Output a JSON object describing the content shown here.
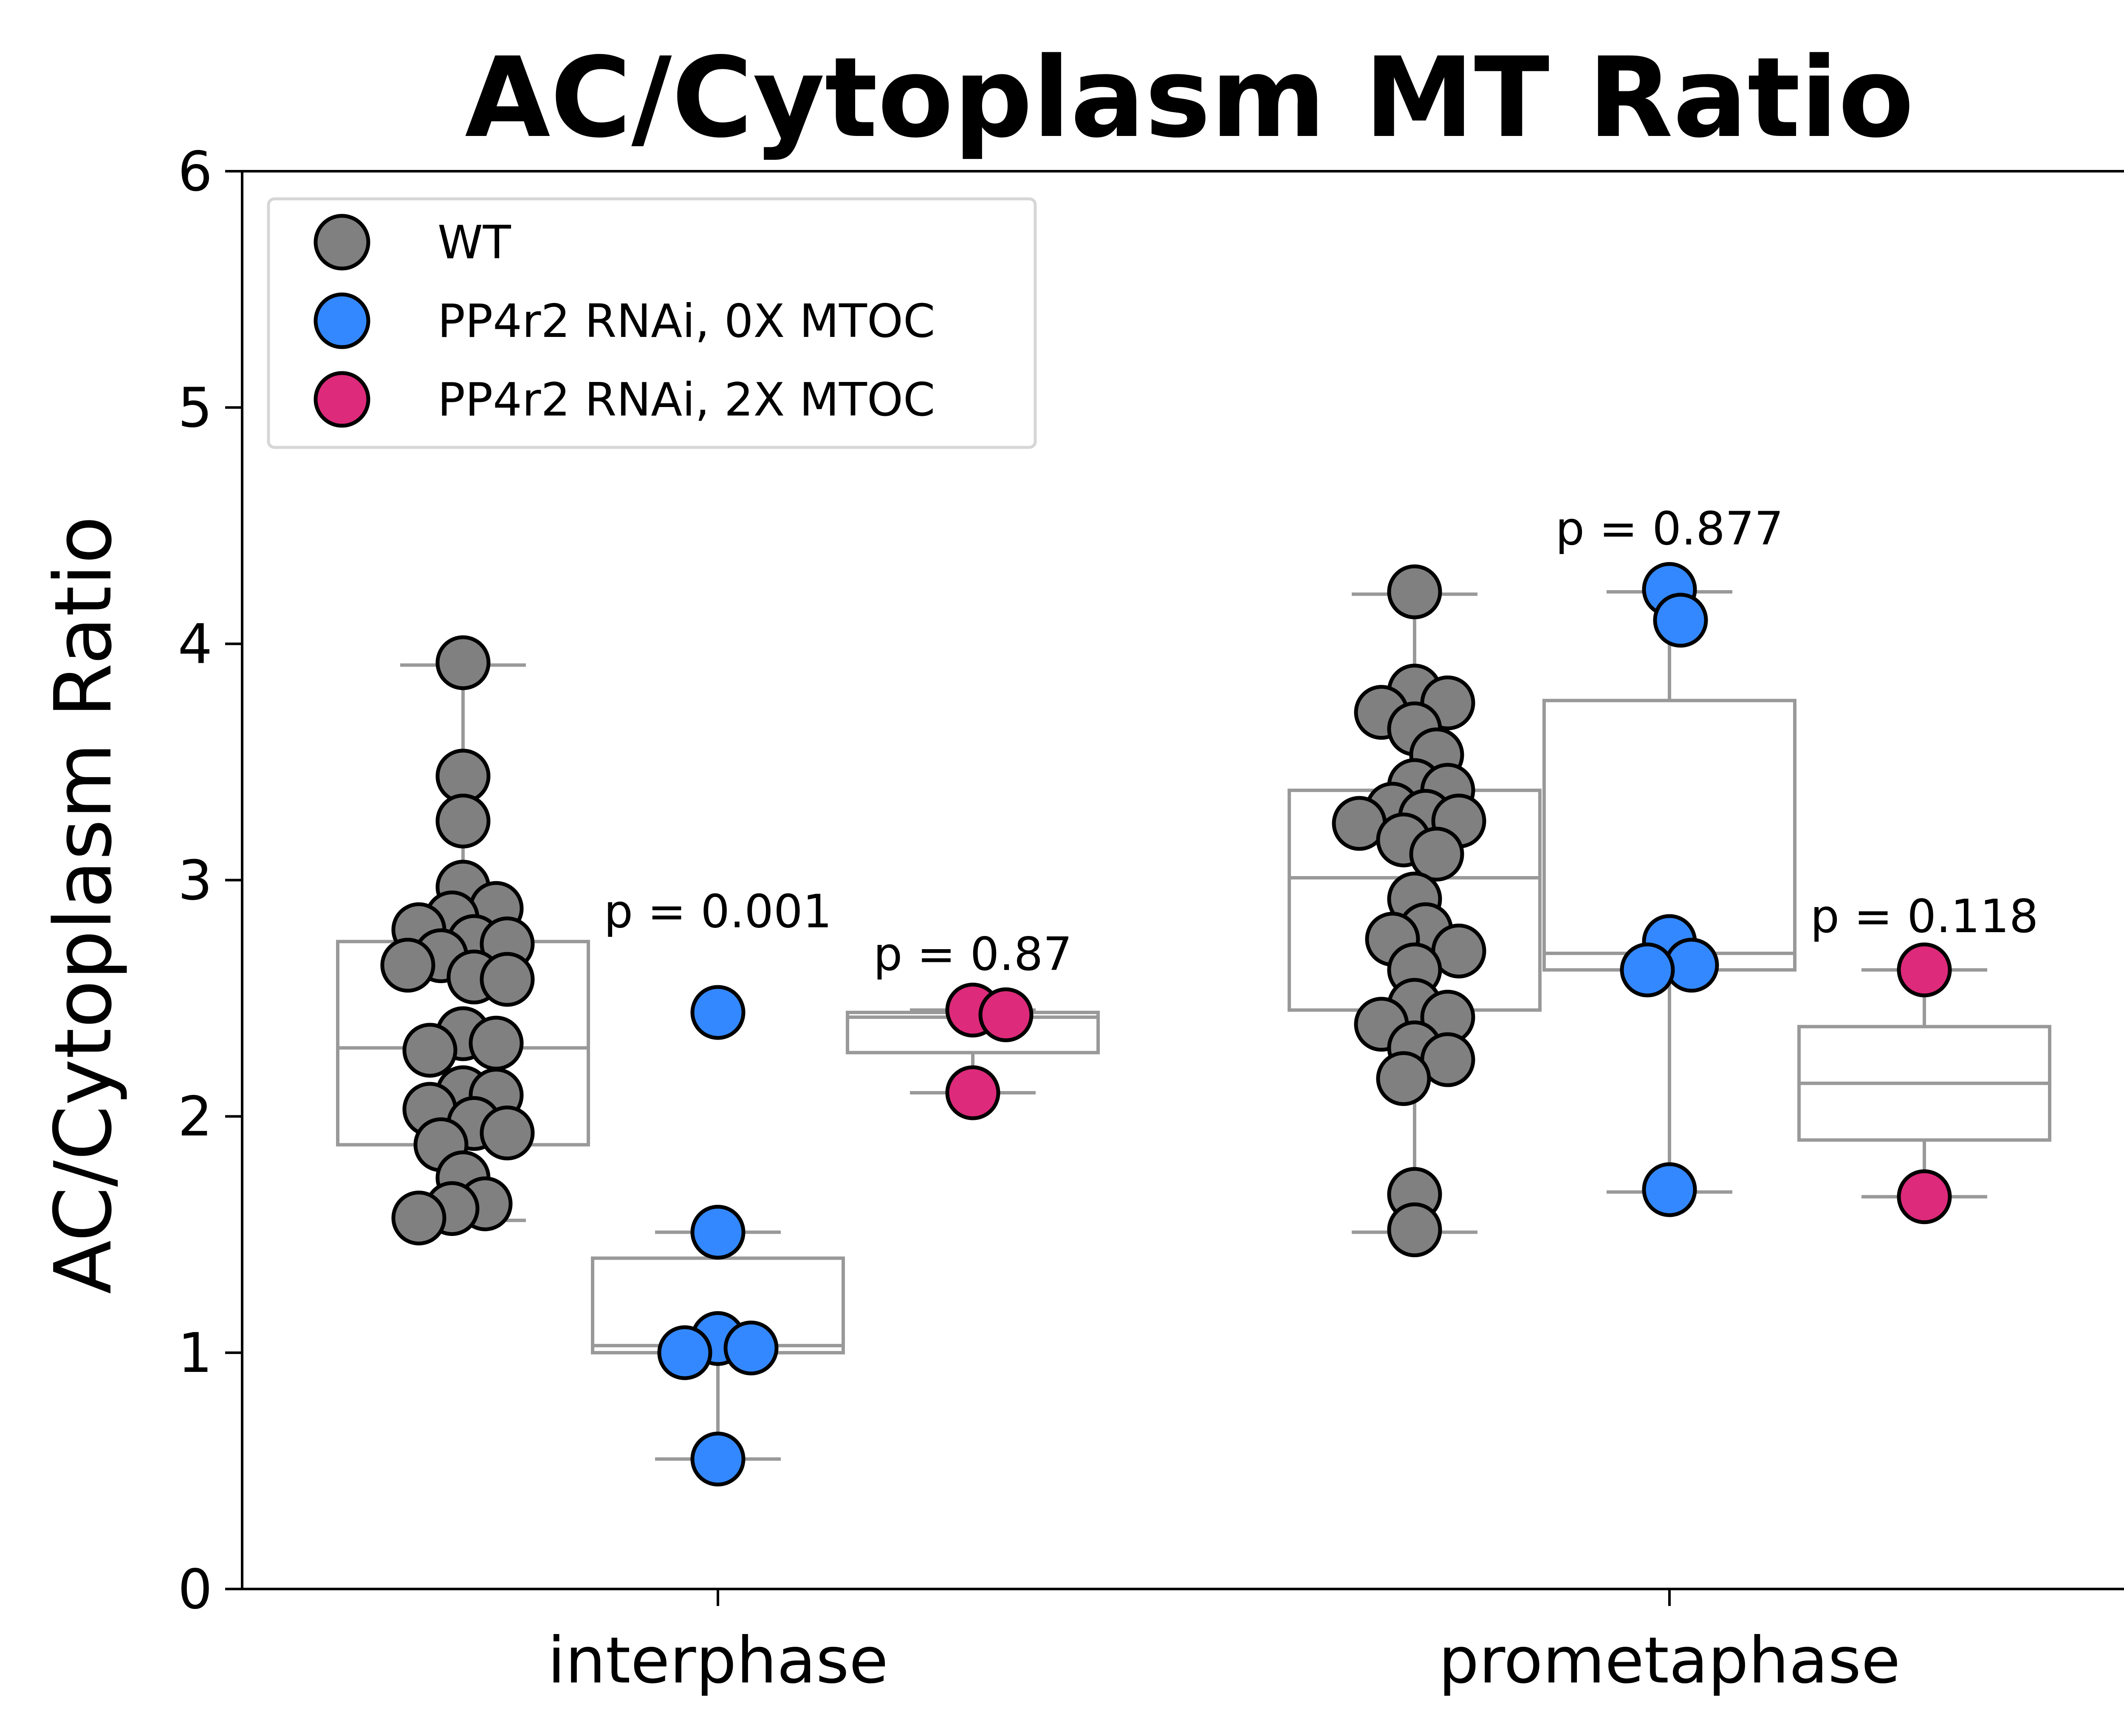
{
  "chart_data": {
    "type": "scatter",
    "title": "AC/Cytoplasm MT Ratio",
    "xlabel": "",
    "ylabel": "AC/Cytoplasm Ratio",
    "ylim": [
      0,
      6
    ],
    "yticks": [
      "0",
      "1",
      "2",
      "3",
      "4",
      "5",
      "6"
    ],
    "categories": [
      "interphase",
      "prometaphase"
    ],
    "grid": false,
    "legend_position": "top-left",
    "series": [
      {
        "name": "WT",
        "color": "#808080",
        "groups": [
          {
            "category": "interphase",
            "box": {
              "whisker_low": 1.56,
              "q1": 1.88,
              "median": 2.29,
              "q3": 2.74,
              "whisker_high": 3.91
            },
            "points": [
              3.92,
              3.44,
              3.25,
              2.97,
              2.88,
              2.84,
              2.79,
              2.74,
              2.73,
              2.68,
              2.64,
              2.59,
              2.58,
              2.35,
              2.31,
              2.28,
              2.1,
              2.09,
              2.03,
              1.97,
              1.93,
              1.88,
              1.74,
              1.63,
              1.61,
              1.57
            ]
          },
          {
            "category": "prometaphase",
            "box": {
              "whisker_low": 1.51,
              "q1": 2.45,
              "median": 3.01,
              "q3": 3.38,
              "whisker_high": 4.21
            },
            "points": [
              4.22,
              3.8,
              3.75,
              3.71,
              3.64,
              3.53,
              3.4,
              3.38,
              3.3,
              3.27,
              3.25,
              3.24,
              3.17,
              3.11,
              2.92,
              2.79,
              2.75,
              2.7,
              2.62,
              2.47,
              2.42,
              2.39,
              2.29,
              2.24,
              2.16,
              1.67,
              1.52
            ]
          }
        ]
      },
      {
        "name": "PP4r2 RNAi, 0X MTOC",
        "color": "#3388ff",
        "groups": [
          {
            "category": "interphase",
            "box": {
              "whisker_low": 0.55,
              "q1": 1.0,
              "median": 1.03,
              "q3": 1.4,
              "whisker_high": 1.51
            },
            "points": [
              2.44,
              1.51,
              1.06,
              1.02,
              1.0,
              0.55
            ]
          },
          {
            "category": "prometaphase",
            "box": {
              "whisker_low": 1.68,
              "q1": 2.62,
              "median": 2.69,
              "q3": 3.76,
              "whisker_high": 4.22
            },
            "points": [
              4.23,
              4.1,
              2.74,
              2.64,
              2.62,
              1.69
            ]
          }
        ]
      },
      {
        "name": "PP4r2 RNAi, 2X MTOC",
        "color": "#dd2a7b",
        "groups": [
          {
            "category": "interphase",
            "box": {
              "whisker_low": 2.1,
              "q1": 2.27,
              "median": 2.42,
              "q3": 2.44,
              "whisker_high": 2.45
            },
            "points": [
              2.45,
              2.43,
              2.1
            ]
          },
          {
            "category": "prometaphase",
            "box": {
              "whisker_low": 1.66,
              "q1": 1.9,
              "median": 2.14,
              "q3": 2.38,
              "whisker_high": 2.62
            },
            "points": [
              2.62,
              1.66
            ]
          }
        ]
      }
    ],
    "annotations": [
      {
        "text": "p = 0.001",
        "category": "interphase",
        "series": 1,
        "y": 2.8
      },
      {
        "text": "p = 0.87",
        "category": "interphase",
        "series": 2,
        "y": 2.62
      },
      {
        "text": "p = 0.877",
        "category": "prometaphase",
        "series": 1,
        "y": 4.42
      },
      {
        "text": "p = 0.118",
        "category": "prometaphase",
        "series": 2,
        "y": 2.78
      }
    ],
    "box_color": "#999999",
    "marker_edge_color": "#000000"
  }
}
